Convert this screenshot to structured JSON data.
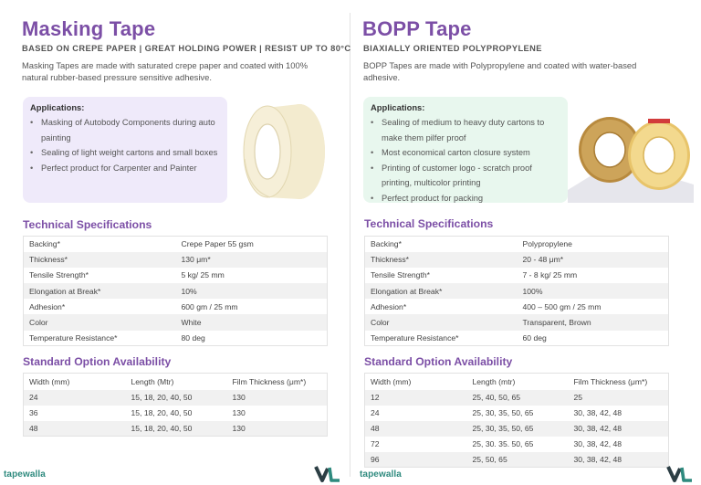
{
  "left": {
    "title": "Masking Tape",
    "subtitle": "BASED ON CREPE PAPER | GREAT HOLDING POWER | RESIST UP TO 80°C",
    "description": "Masking Tapes are made with saturated crepe paper and coated with 100% natural rubber-based pressure sensitive adhesive.",
    "applications_title": "Applications:",
    "applications": [
      "Masking of Autobody Components during auto painting",
      "Sealing of light weight cartons and small boxes",
      "Perfect product for Carpenter and Painter"
    ],
    "specs_heading": "Technical Specifications",
    "specs": [
      {
        "label": "Backing*",
        "value": "Crepe Paper 55 gsm"
      },
      {
        "label": "Thickness*",
        "value": "130 μm*"
      },
      {
        "label": "Tensile Strength*",
        "value": "5 kg/ 25 mm"
      },
      {
        "label": "Elongation at Break*",
        "value": "10%"
      },
      {
        "label": "Adhesion*",
        "value": "600 gm / 25 mm"
      },
      {
        "label": "Color",
        "value": "White"
      },
      {
        "label": "Temperature Resistance*",
        "value": "80 deg"
      }
    ],
    "options_heading": "Standard Option Availability",
    "options_headers": [
      "Width (mm)",
      "Length (Mtr)",
      "Film Thickness (μm*)"
    ],
    "options_rows": [
      [
        "24",
        "15, 18, 20, 40, 50",
        "130"
      ],
      [
        "36",
        "15, 18, 20, 40, 50",
        "130"
      ],
      [
        "48",
        "15, 18, 20, 40, 50",
        "130"
      ]
    ],
    "brand": "tapewalla"
  },
  "right": {
    "title": "BOPP Tape",
    "subtitle": "BIAXIALLY ORIENTED POLYPROPYLENE",
    "description": "BOPP Tapes are made with Polypropylene and coated with water-based adhesive.",
    "applications_title": "Applications:",
    "applications": [
      "Sealing of medium to heavy duty cartons to make them pilfer proof",
      "Most economical carton closure system",
      "Printing of customer logo - scratch proof printing, multicolor printing",
      "Perfect product for packing"
    ],
    "specs_heading": "Technical Specifications",
    "specs": [
      {
        "label": "Backing*",
        "value": "Polypropylene"
      },
      {
        "label": "Thickness*",
        "value": "20 - 48 μm*"
      },
      {
        "label": "Tensile Strength*",
        "value": "7 - 8 kg/ 25 mm"
      },
      {
        "label": "Elongation at Break*",
        "value": "100%"
      },
      {
        "label": "Adhesion*",
        "value": "400 – 500 gm / 25 mm"
      },
      {
        "label": "Color",
        "value": "Transparent, Brown"
      },
      {
        "label": "Temperature Resistance*",
        "value": "60 deg"
      }
    ],
    "options_heading": "Standard Option Availability",
    "options_headers": [
      "Width (mm)",
      "Length (mtr)",
      "Film Thickness (μm*)"
    ],
    "options_rows": [
      [
        "12",
        "25, 40, 50, 65",
        "25"
      ],
      [
        "24",
        "25, 30, 35, 50, 65",
        "30, 38, 42, 48"
      ],
      [
        "48",
        "25, 30, 35, 50, 65",
        "30, 38, 42, 48"
      ],
      [
        "72",
        "25, 30. 35. 50, 65",
        "30, 38, 42, 48"
      ],
      [
        "96",
        "25, 50, 65",
        "30, 38, 42, 48"
      ]
    ],
    "brand": "tapewalla"
  },
  "colors": {
    "accent": "#7c4fa6",
    "masking_app_bg": "#efeafa",
    "bopp_app_bg": "#e8f7ee",
    "brand": "#2e8a7e"
  }
}
